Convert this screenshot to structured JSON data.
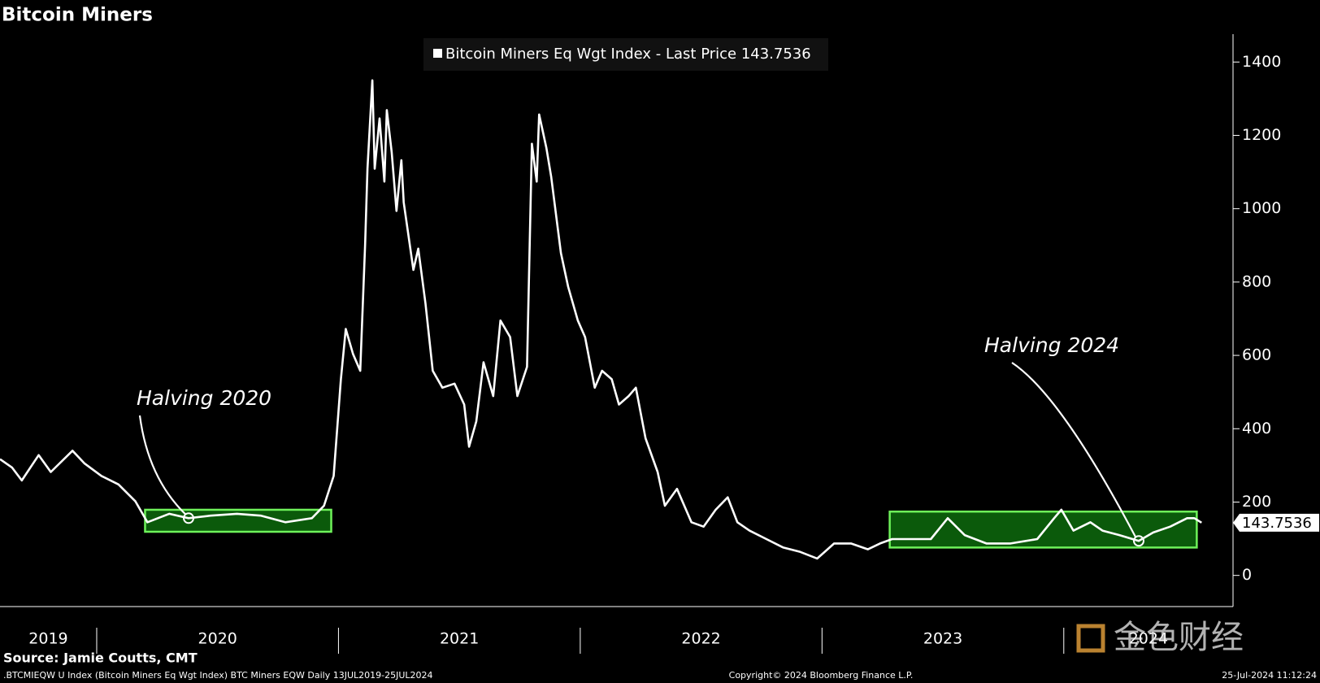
{
  "chart_data": {
    "type": "line",
    "title": "Bitcoin Miners",
    "source": "Source: Jamie Coutts, CMT",
    "footer_left": ".BTCMIEQW U Index (Bitcoin Miners Eq Wgt Index) BTC Miners EQW  Daily 13JUL2019-25JUL2024",
    "footer_center": "Copyright© 2024 Bloomberg Finance L.P.",
    "footer_right": "25-Jul-2024 11:12:24",
    "watermark": "金色财经",
    "xlim": [
      2019.6,
      2024.7
    ],
    "ylim": [
      -85,
      1476
    ],
    "yticks": [
      0,
      200,
      400,
      600,
      800,
      1000,
      1200,
      1400
    ],
    "xticks": [
      {
        "value": 2019.8,
        "label": "2019"
      },
      {
        "value": 2020.5,
        "label": "2020"
      },
      {
        "value": 2021.5,
        "label": "2021"
      },
      {
        "value": 2022.5,
        "label": "2022"
      },
      {
        "value": 2023.5,
        "label": "2023"
      },
      {
        "value": 2024.35,
        "label": "2024"
      }
    ],
    "minor_xticks": [
      2020,
      2021,
      2022,
      2023,
      2024
    ],
    "last_price": 143.7536,
    "series": [
      {
        "name": "Bitcoin Miners Eq Wgt Index - Last Price 143.7536",
        "color": "#ffffff",
        "x": [
          2019.6,
          2019.65,
          2019.69,
          2019.76,
          2019.81,
          2019.9,
          2019.95,
          2020.02,
          2020.09,
          2020.16,
          2020.21,
          2020.3,
          2020.38,
          2020.47,
          2020.58,
          2020.68,
          2020.78,
          2020.89,
          2020.94,
          2020.98,
          2021.01,
          2021.03,
          2021.06,
          2021.09,
          2021.11,
          2021.12,
          2021.14,
          2021.15,
          2021.17,
          2021.19,
          2021.2,
          2021.22,
          2021.24,
          2021.26,
          2021.27,
          2021.31,
          2021.33,
          2021.36,
          2021.39,
          2021.43,
          2021.48,
          2021.52,
          2021.54,
          2021.57,
          2021.6,
          2021.64,
          2021.67,
          2021.71,
          2021.74,
          2021.78,
          2021.8,
          2021.82,
          2021.83,
          2021.86,
          2021.88,
          2021.92,
          2021.95,
          2021.99,
          2022.02,
          2022.06,
          2022.09,
          2022.13,
          2022.16,
          2022.2,
          2022.23,
          2022.27,
          2022.32,
          2022.35,
          2022.4,
          2022.46,
          2022.51,
          2022.56,
          2022.61,
          2022.65,
          2022.7,
          2022.77,
          2022.84,
          2022.91,
          2022.98,
          2023.05,
          2023.12,
          2023.19,
          2023.24,
          2023.29,
          2023.36,
          2023.45,
          2023.52,
          2023.59,
          2023.68,
          2023.78,
          2023.89,
          2023.96,
          2023.99,
          2024.04,
          2024.11,
          2024.16,
          2024.23,
          2024.31,
          2024.37,
          2024.44,
          2024.51,
          2024.54,
          2024.57
        ],
        "values": [
          317,
          294,
          259,
          328,
          282,
          340,
          305,
          271,
          248,
          202,
          145,
          168,
          156,
          163,
          168,
          163,
          145,
          156,
          190,
          271,
          535,
          672,
          604,
          558,
          902,
          1109,
          1350,
          1109,
          1246,
          1074,
          1269,
          1154,
          994,
          1132,
          1017,
          833,
          891,
          741,
          558,
          512,
          523,
          466,
          351,
          420,
          581,
          489,
          695,
          650,
          489,
          569,
          1177,
          1074,
          1257,
          1166,
          1086,
          879,
          787,
          695,
          650,
          512,
          558,
          535,
          466,
          489,
          512,
          374,
          282,
          190,
          236,
          145,
          133,
          179,
          213,
          145,
          122,
          99,
          76,
          64,
          46,
          87,
          87,
          71,
          87,
          99,
          99,
          99,
          156,
          110,
          87,
          87,
          99,
          156,
          179,
          122,
          145,
          122,
          110,
          94,
          117,
          133,
          156,
          156,
          143.7536
        ]
      }
    ],
    "ranges": [
      {
        "x": [
          2020.2,
          2020.97
        ],
        "y": [
          119,
          179
        ]
      },
      {
        "x": [
          2023.28,
          2024.55
        ],
        "y": [
          76,
          174
        ]
      }
    ],
    "annotations": [
      {
        "text": "Halving 2020",
        "x": 2020.38,
        "y": 156
      },
      {
        "text": "Halving 2024",
        "x": 2024.31,
        "y": 94
      }
    ]
  }
}
